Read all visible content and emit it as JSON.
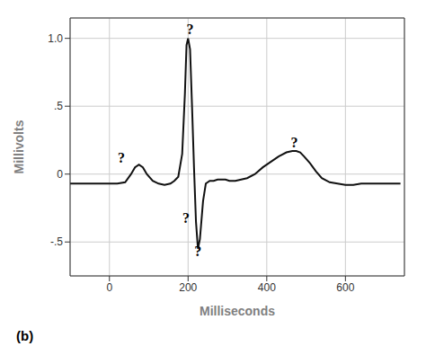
{
  "chart_data": {
    "type": "line",
    "title": "(b)",
    "xlabel": "Milliseconds",
    "ylabel": "Millivolts",
    "xlim": [
      -100,
      750
    ],
    "ylim": [
      -0.75,
      1.15
    ],
    "xticks": [
      0,
      200,
      400,
      600
    ],
    "yticks": [
      {
        "value": -0.5,
        "label": "-.5"
      },
      0,
      {
        "value": 0.5,
        "label": ".5"
      },
      {
        "value": 1.0,
        "label": "1.0"
      }
    ],
    "grid": true,
    "color": "#111111",
    "x": [
      -100,
      -80,
      -60,
      -40,
      -20,
      0,
      20,
      40,
      55,
      65,
      75,
      85,
      95,
      110,
      125,
      140,
      155,
      165,
      175,
      185,
      192,
      196,
      200,
      205,
      210,
      215,
      220,
      225,
      230,
      238,
      245,
      255,
      265,
      275,
      285,
      295,
      305,
      320,
      335,
      350,
      370,
      390,
      410,
      430,
      450,
      465,
      475,
      485,
      495,
      510,
      525,
      540,
      560,
      580,
      600,
      620,
      640,
      660,
      680,
      700,
      720,
      740
    ],
    "values": [
      -0.07,
      -0.07,
      -0.07,
      -0.07,
      -0.07,
      -0.07,
      -0.07,
      -0.06,
      0.0,
      0.05,
      0.07,
      0.05,
      0.0,
      -0.05,
      -0.07,
      -0.08,
      -0.07,
      -0.05,
      -0.02,
      0.15,
      0.6,
      0.95,
      1.0,
      0.92,
      0.5,
      0.05,
      -0.35,
      -0.55,
      -0.48,
      -0.2,
      -0.07,
      -0.05,
      -0.05,
      -0.04,
      -0.04,
      -0.04,
      -0.05,
      -0.05,
      -0.04,
      -0.03,
      0.0,
      0.05,
      0.09,
      0.13,
      0.16,
      0.17,
      0.17,
      0.16,
      0.13,
      0.08,
      0.02,
      -0.03,
      -0.06,
      -0.07,
      -0.08,
      -0.08,
      -0.07,
      -0.07,
      -0.07,
      -0.07,
      -0.07,
      -0.07
    ],
    "annotations": [
      {
        "x": 205,
        "y": 1.07,
        "text": "?"
      },
      {
        "x": 30,
        "y": 0.12,
        "text": "?"
      },
      {
        "x": 195,
        "y": -0.32,
        "text": "?"
      },
      {
        "x": 225,
        "y": -0.57,
        "text": "?"
      },
      {
        "x": 470,
        "y": 0.23,
        "text": "?"
      }
    ]
  }
}
